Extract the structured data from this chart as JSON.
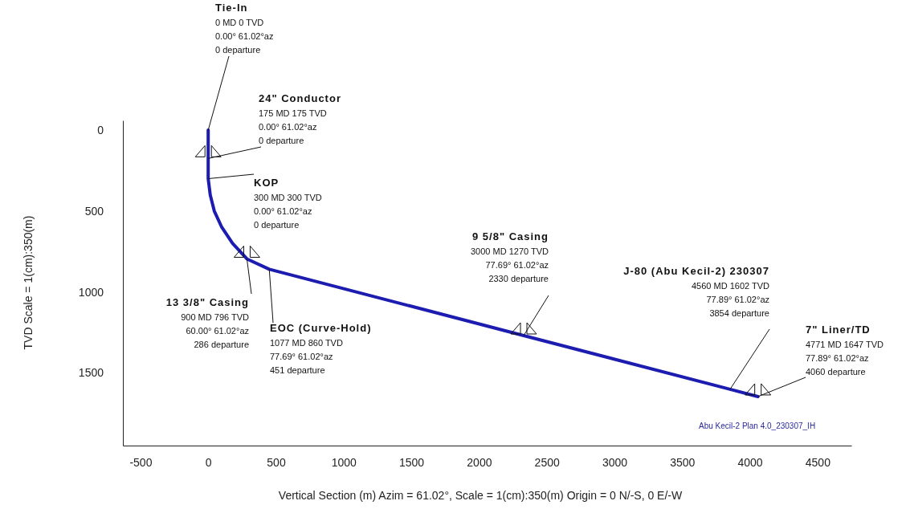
{
  "chart_data": {
    "type": "line",
    "xlabel": "Vertical Section (m) Azim = 61.02°, Scale = 1(cm):350(m) Origin = 0 N/-S, 0 E/-W",
    "ylabel": "TVD Scale = 1(cm):350(m)",
    "xlim": [
      -630,
      4750
    ],
    "ylim": [
      1950,
      -60
    ],
    "xticks": [
      -500,
      0,
      500,
      1000,
      1500,
      2000,
      2500,
      3000,
      3500,
      4000,
      4500
    ],
    "yticks": [
      0,
      500,
      1000,
      1500
    ],
    "grid": false,
    "marker": "none",
    "line_style": "solid",
    "series": [
      {
        "color": "#1c1cb0",
        "x": [
          0,
          0,
          0,
          15,
          45,
          100,
          180,
          286,
          451,
          2330,
          3854,
          4060
        ],
        "values": [
          0,
          175,
          300,
          400,
          500,
          600,
          700,
          796,
          860,
          1270,
          1602,
          1647
        ]
      }
    ],
    "annotations": [
      {
        "text": "Tie-In\n0 MD  0 TVD\n0.00°  61.02°az\n0 departure",
        "x": 0,
        "y": 0
      },
      {
        "text": "24\" Conductor\n175 MD  175 TVD\n0.00°  61.02°az\n0 departure",
        "x": 0,
        "y": 175
      },
      {
        "text": "KOP\n300 MD  300 TVD\n0.00°  61.02°az\n0 departure",
        "x": 0,
        "y": 300
      },
      {
        "text": "13 3/8\" Casing\n900 MD  796 TVD\n60.00°  61.02°az\n286 departure",
        "x": 286,
        "y": 796
      },
      {
        "text": "EOC (Curve-Hold)\n1077 MD  860 TVD\n77.69°  61.02°az\n451 departure",
        "x": 451,
        "y": 860
      },
      {
        "text": "9 5/8\" Casing\n3000 MD  1270 TVD\n77.69°  61.02°az\n2330 departure",
        "x": 2330,
        "y": 1270
      },
      {
        "text": "J-80 (Abu Kecil-2) 230307\n4560 MD  1602 TVD\n77.89°  61.02°az\n3854 departure",
        "x": 3854,
        "y": 1602
      },
      {
        "text": "7\" Liner/TD\n4771 MD  1647 TVD\n77.89°  61.02°az\n4060 departure",
        "x": 4060,
        "y": 1647
      },
      "Abu Kecil-2 Plan 4.0_230307_IH"
    ]
  }
}
